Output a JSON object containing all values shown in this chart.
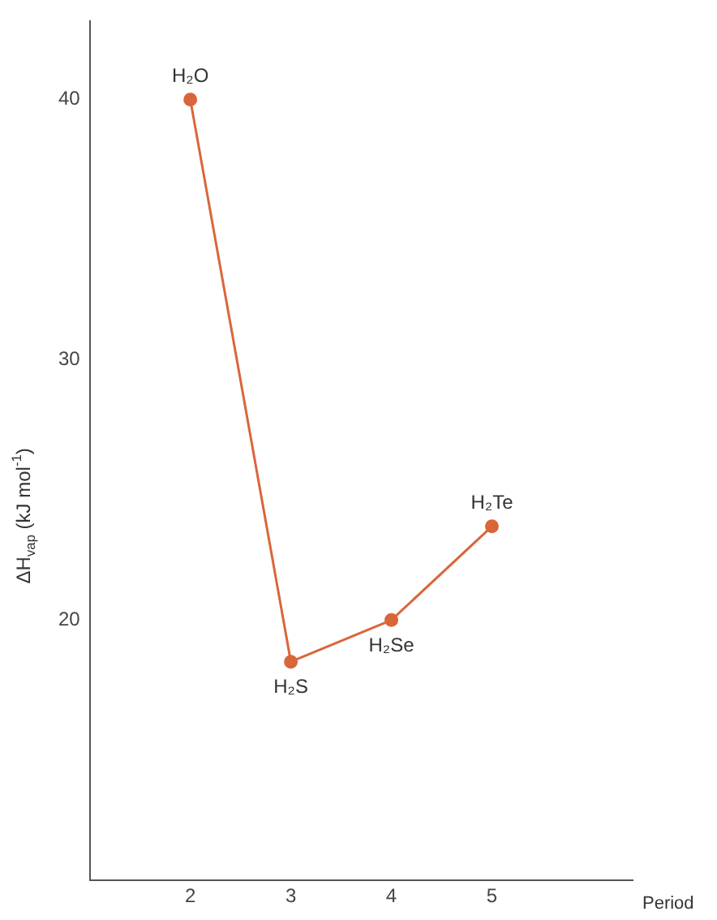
{
  "chart_data": {
    "type": "line",
    "xlabel": "Period",
    "ylabel": "ΔH$_{vap}$ (kJ mol$^{-1}$)",
    "x": [
      2,
      3,
      4,
      5
    ],
    "series": [
      {
        "color": "#d9663a",
        "values": [
          40,
          18.4,
          20,
          23.6
        ]
      }
    ],
    "xlim": [
      1,
      6.4
    ],
    "xticks": [
      2,
      3,
      4,
      5
    ],
    "ylim": [
      10,
      43
    ],
    "yticks": [
      20,
      30,
      40
    ],
    "grid": false,
    "legend": false,
    "marker": "circle",
    "line_style": "solid",
    "annotations": [
      {
        "text": "H₂O",
        "x": 2,
        "y": 40
      },
      {
        "text": "H₂S",
        "x": 3,
        "y": 18.4
      },
      {
        "text": "H₂Se",
        "x": 4,
        "y": 20
      },
      {
        "text": "H₂Te",
        "x": 5,
        "y": 23.6
      }
    ]
  }
}
